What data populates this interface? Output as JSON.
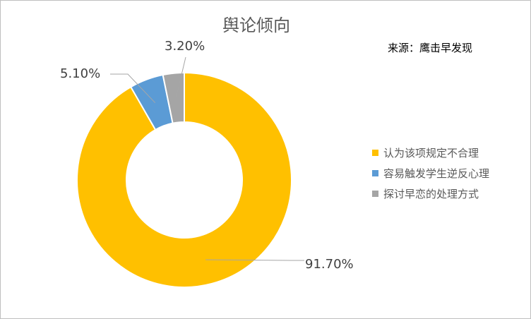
{
  "chart_data": {
    "type": "pie",
    "title": "舆论倾向",
    "source_note": "来源：鹰击早发现",
    "categories": [
      "认为该项规定不合理",
      "容易触发学生逆反心理",
      "探讨早恋的处理方式"
    ],
    "values": [
      91.7,
      5.1,
      3.2
    ],
    "data_labels": [
      "91.70%",
      "5.10%",
      "3.20%"
    ],
    "colors": [
      "#FFC000",
      "#5B9BD5",
      "#A5A5A5"
    ],
    "donut": true,
    "legend_position": "right"
  }
}
